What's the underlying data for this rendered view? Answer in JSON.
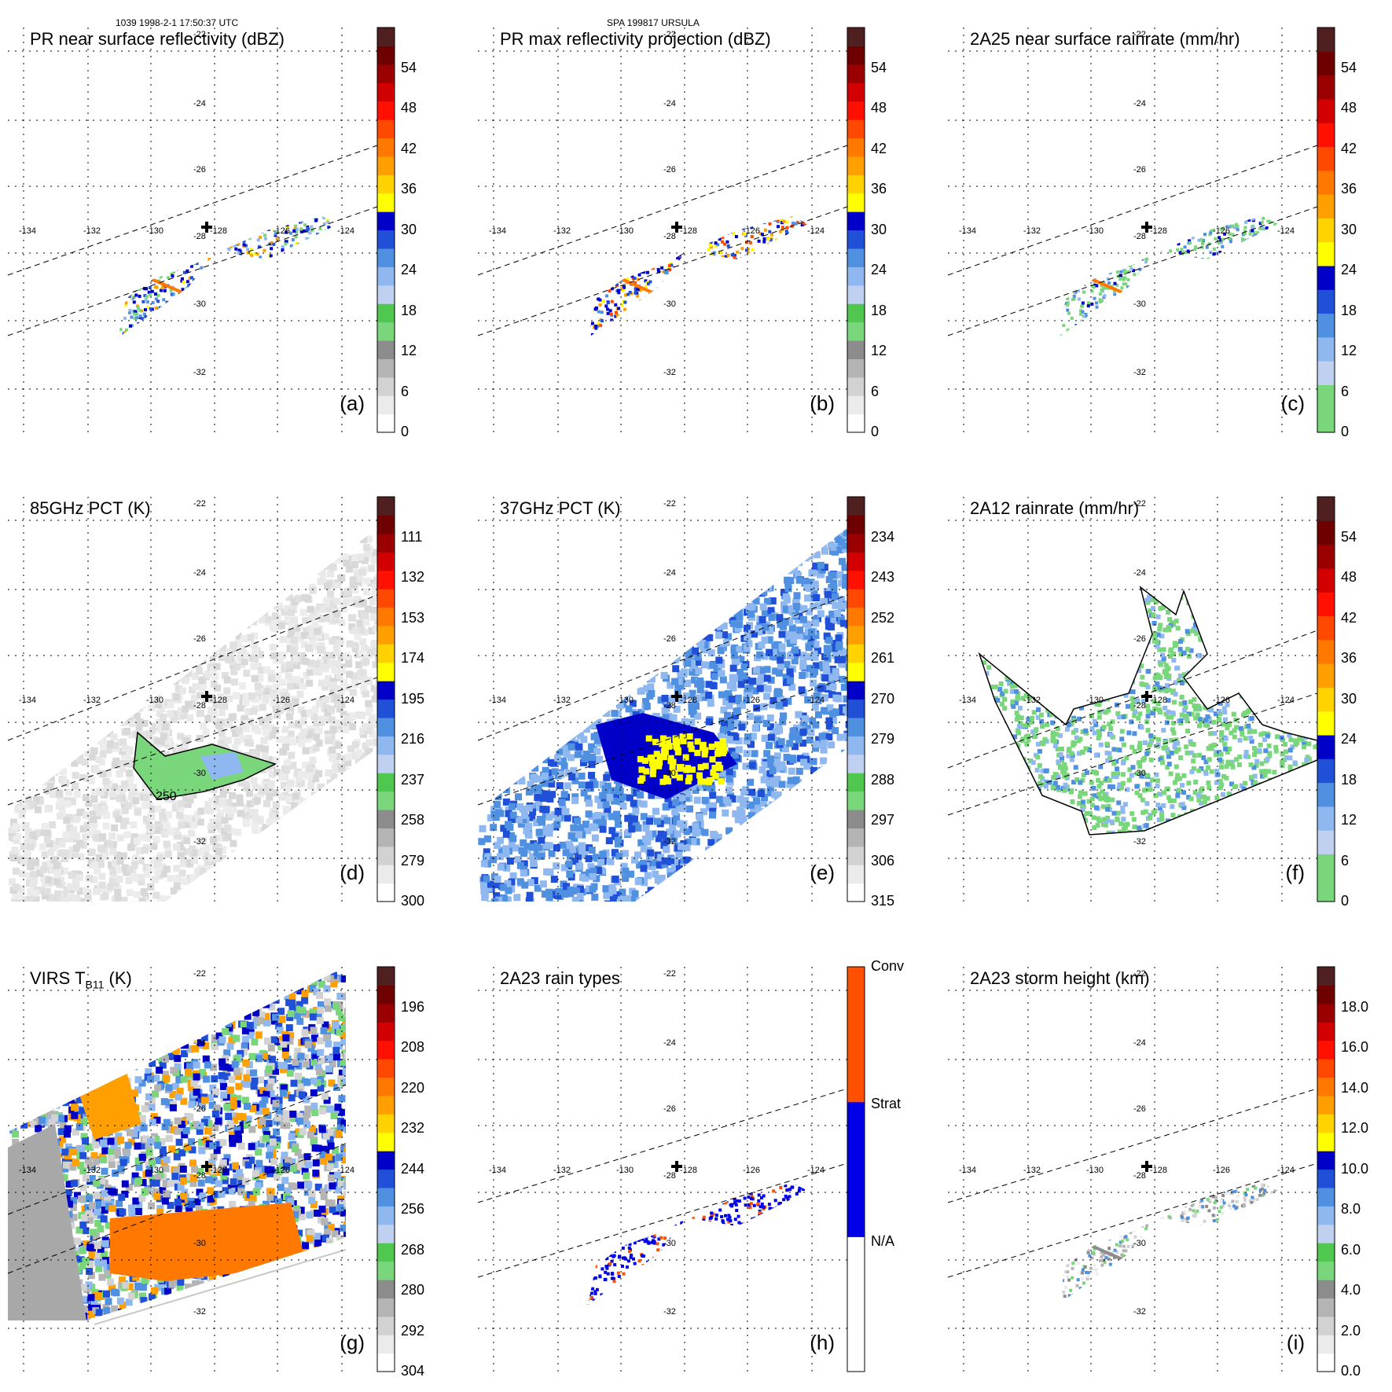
{
  "header": {
    "time_label": "1039 1998-2-1 17:50:37 UTC",
    "storm_label": "SPA 199817 URSULA"
  },
  "grid": {
    "lon_labels": [
      "-134",
      "-132",
      "-130",
      "-128",
      "-126",
      "-124"
    ],
    "lat_labels": [
      "-22",
      "-24",
      "-26",
      "-28",
      "-30",
      "-32"
    ]
  },
  "panels": [
    {
      "id": "a",
      "title": "PR near surface reflectivity (dBZ)",
      "label": "(a)",
      "kind": "pr_nsr",
      "colorbar": {
        "ticks": [
          "0",
          "6",
          "12",
          "18",
          "24",
          "30",
          "36",
          "42",
          "48",
          "54"
        ],
        "colors": [
          "#ffffff",
          "#ebebeb",
          "#d2d2d2",
          "#b4b4b4",
          "#8c8c8c",
          "#79d67a",
          "#50c850",
          "#c0d0f0",
          "#90b8f0",
          "#5090e0",
          "#2050d8",
          "#0000c8",
          "#ffff00",
          "#ffd200",
          "#ffa000",
          "#ff7800",
          "#ff4800",
          "#ff1000",
          "#d20000",
          "#9b0000",
          "#6e0000",
          "#502020"
        ]
      }
    },
    {
      "id": "b",
      "title": "PR max reflectivity projection (dBZ)",
      "label": "(b)",
      "kind": "pr_max",
      "colorbar": {
        "ticks": [
          "0",
          "6",
          "12",
          "18",
          "24",
          "30",
          "36",
          "42",
          "48",
          "54"
        ],
        "colors": [
          "#ffffff",
          "#ebebeb",
          "#d2d2d2",
          "#b4b4b4",
          "#8c8c8c",
          "#79d67a",
          "#50c850",
          "#c0d0f0",
          "#90b8f0",
          "#5090e0",
          "#2050d8",
          "#0000c8",
          "#ffff00",
          "#ffd200",
          "#ffa000",
          "#ff7800",
          "#ff4800",
          "#ff1000",
          "#d20000",
          "#9b0000",
          "#6e0000",
          "#502020"
        ]
      }
    },
    {
      "id": "c",
      "title": "2A25 near surface rainrate (mm/hr)",
      "label": "(c)",
      "kind": "rr_2a25",
      "colorbar": {
        "ticks": [
          "0",
          "6",
          "12",
          "18",
          "24",
          "30",
          "36",
          "42",
          "48",
          "54"
        ],
        "colors": [
          "#79d67a",
          "#79d67a",
          "#c0d0f0",
          "#90b8f0",
          "#5090e0",
          "#2050d8",
          "#0000c8",
          "#ffff00",
          "#ffd200",
          "#ffa000",
          "#ff7800",
          "#ff4800",
          "#ff1000",
          "#d20000",
          "#9b0000",
          "#6e0000",
          "#502020"
        ]
      }
    },
    {
      "id": "d",
      "title": "85GHz PCT (K)",
      "label": "(d)",
      "kind": "pct85",
      "contour_label": "250",
      "colorbar": {
        "ticks": [
          "300",
          "279",
          "258",
          "237",
          "216",
          "195",
          "174",
          "153",
          "132",
          "111"
        ],
        "colors": [
          "#ffffff",
          "#ebebeb",
          "#d2d2d2",
          "#b4b4b4",
          "#8c8c8c",
          "#79d67a",
          "#50c850",
          "#c0d0f0",
          "#90b8f0",
          "#5090e0",
          "#2050d8",
          "#0000c8",
          "#ffff00",
          "#ffd200",
          "#ffa000",
          "#ff7800",
          "#ff4800",
          "#ff1000",
          "#d20000",
          "#9b0000",
          "#6e0000",
          "#502020"
        ]
      }
    },
    {
      "id": "e",
      "title": "37GHz PCT (K)",
      "label": "(e)",
      "kind": "pct37",
      "colorbar": {
        "ticks": [
          "315",
          "306",
          "297",
          "288",
          "279",
          "270",
          "261",
          "252",
          "243",
          "234"
        ],
        "colors": [
          "#ffffff",
          "#ebebeb",
          "#d2d2d2",
          "#b4b4b4",
          "#8c8c8c",
          "#79d67a",
          "#50c850",
          "#c0d0f0",
          "#90b8f0",
          "#5090e0",
          "#2050d8",
          "#0000c8",
          "#ffff00",
          "#ffd200",
          "#ffa000",
          "#ff7800",
          "#ff4800",
          "#ff1000",
          "#d20000",
          "#9b0000",
          "#6e0000",
          "#502020"
        ]
      }
    },
    {
      "id": "f",
      "title": "2A12 rainrate (mm/hr)",
      "label": "(f)",
      "kind": "rr_2a12",
      "colorbar": {
        "ticks": [
          "0",
          "6",
          "12",
          "18",
          "24",
          "30",
          "36",
          "42",
          "48",
          "54"
        ],
        "colors": [
          "#79d67a",
          "#79d67a",
          "#c0d0f0",
          "#90b8f0",
          "#5090e0",
          "#2050d8",
          "#0000c8",
          "#ffff00",
          "#ffd200",
          "#ffa000",
          "#ff7800",
          "#ff4800",
          "#ff1000",
          "#d20000",
          "#9b0000",
          "#6e0000",
          "#502020"
        ]
      }
    },
    {
      "id": "g",
      "title": "VIRS T",
      "title_sub": "B11",
      "title_suffix": " (K)",
      "label": "(g)",
      "kind": "virs",
      "colorbar": {
        "ticks": [
          "304",
          "292",
          "280",
          "268",
          "256",
          "244",
          "232",
          "220",
          "208",
          "196"
        ],
        "colors": [
          "#ffffff",
          "#ebebeb",
          "#d2d2d2",
          "#b4b4b4",
          "#8c8c8c",
          "#79d67a",
          "#50c850",
          "#c0d0f0",
          "#90b8f0",
          "#5090e0",
          "#2050d8",
          "#0000c8",
          "#ffff00",
          "#ffd200",
          "#ffa000",
          "#ff7800",
          "#ff4800",
          "#ff1000",
          "#d20000",
          "#9b0000",
          "#6e0000",
          "#502020"
        ]
      }
    },
    {
      "id": "h",
      "title": "2A23 rain types",
      "label": "(h)",
      "kind": "raintype",
      "colorbar": {
        "ticks": [
          "N/A",
          "Strat",
          "Conv"
        ],
        "colors": [
          "#ffffff",
          "#0000e6",
          "#ff5000"
        ]
      }
    },
    {
      "id": "i",
      "title": "2A23 storm height (km)",
      "label": "(i)",
      "kind": "stormht",
      "colorbar": {
        "ticks": [
          "0.0",
          "2.0",
          "4.0",
          "6.0",
          "8.0",
          "10.0",
          "12.0",
          "14.0",
          "16.0",
          "18.0"
        ],
        "colors": [
          "#ffffff",
          "#ebebeb",
          "#d2d2d2",
          "#b4b4b4",
          "#8c8c8c",
          "#79d67a",
          "#50c850",
          "#c0d0f0",
          "#90b8f0",
          "#5090e0",
          "#2050d8",
          "#0000c8",
          "#ffff00",
          "#ffd200",
          "#ffa000",
          "#ff7800",
          "#ff4800",
          "#ff1000",
          "#d20000",
          "#9b0000",
          "#6e0000",
          "#502020"
        ]
      }
    }
  ]
}
